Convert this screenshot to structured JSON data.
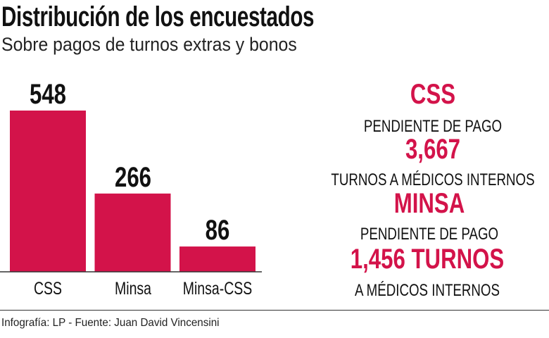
{
  "title": "Distribución de los encuestados",
  "subtitle": "Sobre pagos de turnos extras y bonos",
  "colors": {
    "accent": "#d3134a",
    "text": "#111111"
  },
  "chart_data": {
    "type": "bar",
    "title": "Distribución de los encuestados",
    "subtitle": "Sobre pagos de turnos extras y bonos",
    "categories": [
      "CSS",
      "Minsa",
      "Minsa-CSS"
    ],
    "values": [
      548,
      266,
      86
    ],
    "value_labels": [
      "548",
      "266",
      "86"
    ],
    "xlabel": "",
    "ylabel": "",
    "ylim": [
      0,
      548
    ],
    "grid": false,
    "bar_color": "#d3134a"
  },
  "panel": {
    "css_heading": "CSS",
    "css_line1": "PENDIENTE DE PAGO",
    "css_value": "3,667",
    "css_line2": "TURNOS A MÉDICOS INTERNOS",
    "minsa_heading": "MINSA",
    "minsa_line1": "PENDIENTE DE PAGO",
    "minsa_value": "1,456 TURNOS",
    "minsa_line2": "A MÉDICOS INTERNOS"
  },
  "footer": "Infografía: LP - Fuente: Juan David Vincensini"
}
